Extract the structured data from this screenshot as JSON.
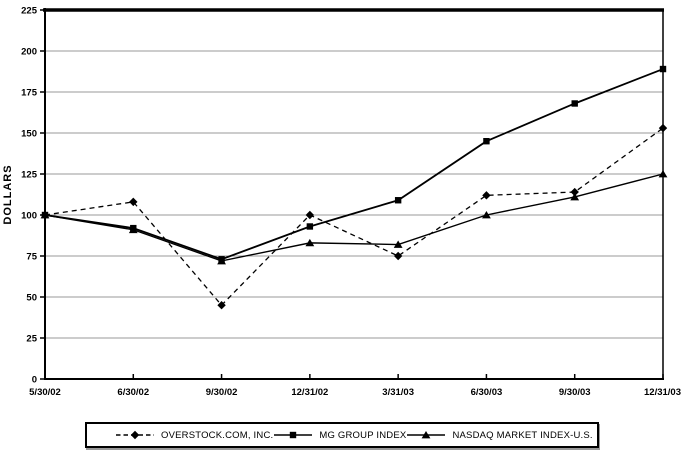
{
  "chart_data": {
    "type": "line",
    "title": "",
    "xlabel": "",
    "ylabel": "DOLLARS",
    "ylim": [
      0,
      225
    ],
    "yticks": [
      0,
      25,
      50,
      75,
      100,
      125,
      150,
      175,
      200,
      225
    ],
    "grid": true,
    "legend_position": "bottom",
    "categories": [
      "5/30/02",
      "6/30/02",
      "9/30/02",
      "12/31/02",
      "3/31/03",
      "6/30/03",
      "9/30/03",
      "12/31/03"
    ],
    "series": [
      {
        "name": "OVERSTOCK.COM, INC.",
        "line_style": "dashed",
        "marker": "diamond",
        "values": [
          100,
          108,
          45,
          100,
          75,
          112,
          114,
          153
        ]
      },
      {
        "name": "MG GROUP INDEX",
        "line_style": "solid",
        "marker": "square",
        "values": [
          100,
          92,
          73,
          93,
          109,
          145,
          168,
          189
        ]
      },
      {
        "name": "NASDAQ MARKET INDEX-U.S.",
        "line_style": "solid",
        "marker": "triangle",
        "values": [
          100,
          91,
          72,
          83,
          82,
          100,
          111,
          125
        ]
      }
    ],
    "colors": {
      "line": "#000000",
      "grid": "#9a9a9a",
      "background": "#ffffff"
    }
  }
}
